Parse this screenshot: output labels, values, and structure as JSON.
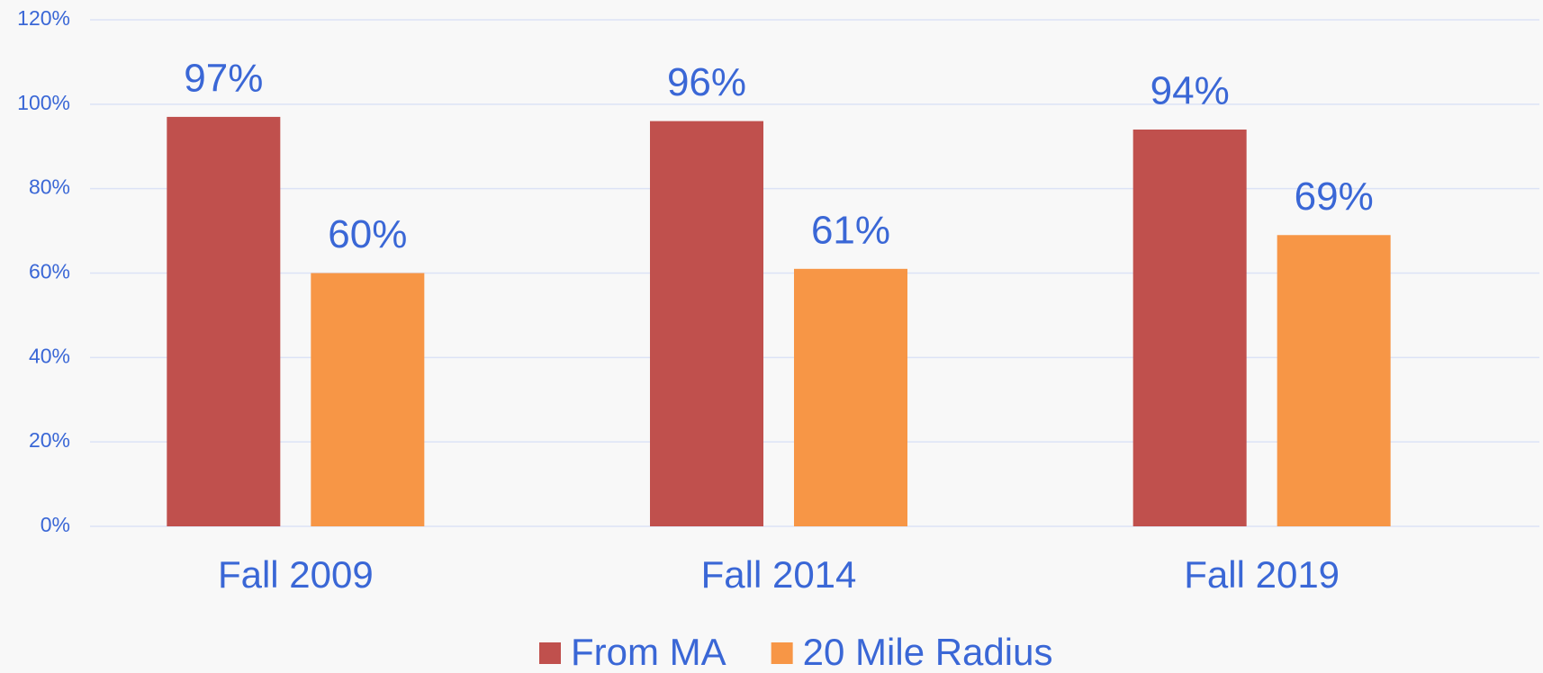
{
  "chart_data": {
    "type": "bar",
    "categories": [
      "Fall 2009",
      "Fall 2014",
      "Fall 2019"
    ],
    "series": [
      {
        "name": "From MA",
        "color": "#c0504d",
        "values": [
          97,
          96,
          94
        ],
        "value_labels": [
          "97%",
          "96%",
          "94%"
        ]
      },
      {
        "name": "20 Mile Radius",
        "color": "#f79646",
        "values": [
          60,
          61,
          69
        ],
        "value_labels": [
          "60%",
          "61%",
          "69%"
        ]
      }
    ],
    "ylim": [
      0,
      120
    ],
    "yticks": [
      {
        "value": 0,
        "label": "0%"
      },
      {
        "value": 20,
        "label": "20%"
      },
      {
        "value": 40,
        "label": "40%"
      },
      {
        "value": 60,
        "label": "60%"
      },
      {
        "value": 80,
        "label": "80%"
      },
      {
        "value": 100,
        "label": "100%"
      },
      {
        "value": 120,
        "label": "120%"
      }
    ],
    "grid": true,
    "legend": "bottom"
  }
}
